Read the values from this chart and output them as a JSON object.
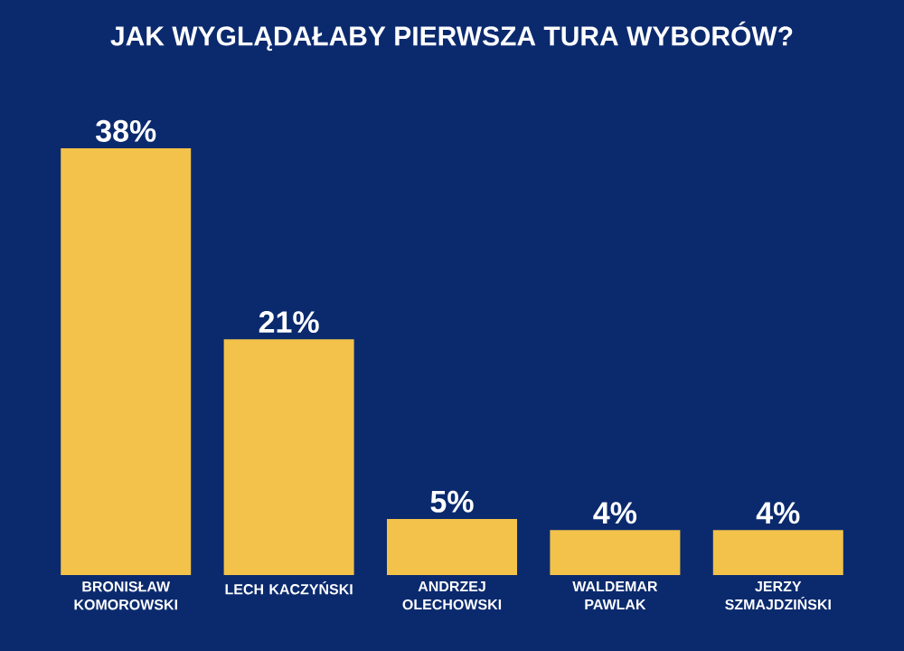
{
  "chart_data": {
    "type": "bar",
    "title": "JAK WYGLĄDAŁABY PIERWSZA TURA WYBORÓW?",
    "categories": [
      "BRONISŁAW KOMOROWSKI",
      "LECH KACZYŃSKI",
      "ANDRZEJ OLECHOWSKI",
      "WALDEMAR PAWLAK",
      "JERZY SZMAJDZIŃSKI"
    ],
    "values": [
      38,
      21,
      5,
      4,
      4
    ],
    "value_labels": [
      "38%",
      "21%",
      "5%",
      "4%",
      "4%"
    ],
    "color": "#f2c24a"
  }
}
